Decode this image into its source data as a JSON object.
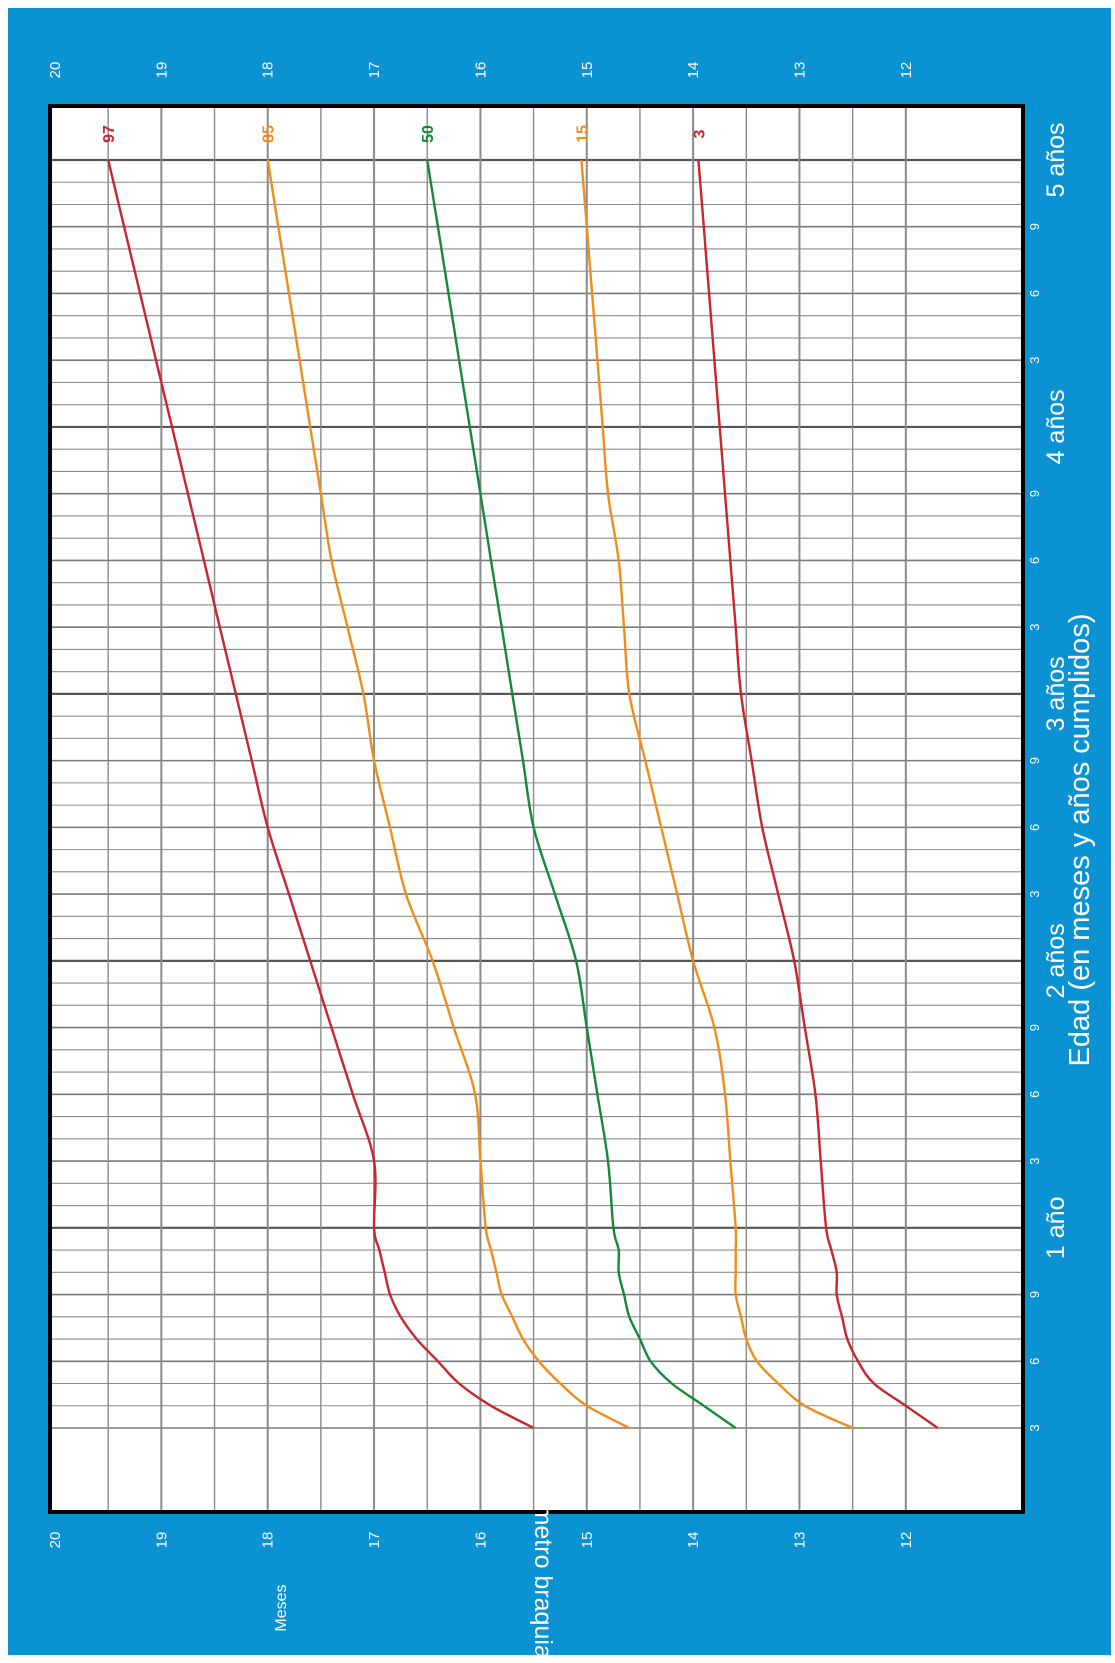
{
  "chart_data": {
    "type": "line",
    "ylabel": "Perímetro braquial (cm)",
    "xlabel": "Edad (en meses y años cumplidos)",
    "axis_caption": "Meses",
    "ylim": [
      11.5,
      20
    ],
    "y_ticks": [
      12,
      13,
      14,
      15,
      16,
      17,
      18,
      19,
      20
    ],
    "xlim_months": [
      3,
      60
    ],
    "x_minor_ticks": [
      {
        "month": 3,
        "label": "3"
      },
      {
        "month": 6,
        "label": "6"
      },
      {
        "month": 9,
        "label": "9"
      },
      {
        "month": 15,
        "label": "3"
      },
      {
        "month": 18,
        "label": "6"
      },
      {
        "month": 21,
        "label": "9"
      },
      {
        "month": 27,
        "label": "3"
      },
      {
        "month": 30,
        "label": "6"
      },
      {
        "month": 33,
        "label": "9"
      },
      {
        "month": 39,
        "label": "3"
      },
      {
        "month": 42,
        "label": "6"
      },
      {
        "month": 45,
        "label": "9"
      },
      {
        "month": 51,
        "label": "3"
      },
      {
        "month": 54,
        "label": "6"
      },
      {
        "month": 57,
        "label": "9"
      }
    ],
    "x_year_ticks": [
      {
        "month": 12,
        "label": "1 año"
      },
      {
        "month": 24,
        "label": "2 años"
      },
      {
        "month": 36,
        "label": "3 años"
      },
      {
        "month": 48,
        "label": "4 años"
      },
      {
        "month": 60,
        "label": "5 años"
      }
    ],
    "x_months": [
      3,
      4,
      5,
      6,
      7,
      8,
      9,
      10,
      11,
      12,
      15,
      18,
      21,
      24,
      27,
      30,
      33,
      36,
      39,
      42,
      45,
      48,
      51,
      54,
      57,
      60
    ],
    "series": [
      {
        "name": "97",
        "color": "#c9252c",
        "values": [
          15.5,
          15.9,
          16.2,
          16.4,
          16.6,
          16.75,
          16.85,
          16.9,
          16.95,
          17.0,
          17.0,
          17.2,
          17.4,
          17.6,
          17.8,
          18.0,
          18.15,
          18.3,
          18.45,
          18.6,
          18.75,
          18.9,
          19.05,
          19.2,
          19.35,
          19.5
        ]
      },
      {
        "name": "85",
        "color": "#f08c1d",
        "values": [
          14.6,
          15.0,
          15.25,
          15.45,
          15.6,
          15.7,
          15.8,
          15.85,
          15.9,
          15.95,
          16.0,
          16.05,
          16.25,
          16.45,
          16.7,
          16.85,
          17.0,
          17.1,
          17.25,
          17.4,
          17.5,
          17.6,
          17.7,
          17.8,
          17.9,
          18.0
        ]
      },
      {
        "name": "50",
        "color": "#138a36",
        "values": [
          13.6,
          13.9,
          14.2,
          14.4,
          14.5,
          14.6,
          14.65,
          14.7,
          14.7,
          14.75,
          14.8,
          14.9,
          15.0,
          15.1,
          15.3,
          15.5,
          15.6,
          15.7,
          15.8,
          15.9,
          16.0,
          16.1,
          16.2,
          16.3,
          16.4,
          16.5
        ]
      },
      {
        "name": "15",
        "color": "#f08c1d",
        "values": [
          12.5,
          12.95,
          13.2,
          13.4,
          13.5,
          13.55,
          13.6,
          13.6,
          13.6,
          13.6,
          13.65,
          13.7,
          13.8,
          14.0,
          14.15,
          14.3,
          14.45,
          14.6,
          14.65,
          14.7,
          14.8,
          14.85,
          14.9,
          14.95,
          15.0,
          15.05
        ]
      },
      {
        "name": "3",
        "color": "#c9252c",
        "values": [
          11.7,
          12.0,
          12.3,
          12.45,
          12.55,
          12.6,
          12.65,
          12.65,
          12.7,
          12.75,
          12.8,
          12.85,
          12.95,
          13.05,
          13.2,
          13.35,
          13.45,
          13.55,
          13.6,
          13.65,
          13.7,
          13.75,
          13.8,
          13.85,
          13.9,
          13.95
        ]
      }
    ]
  }
}
